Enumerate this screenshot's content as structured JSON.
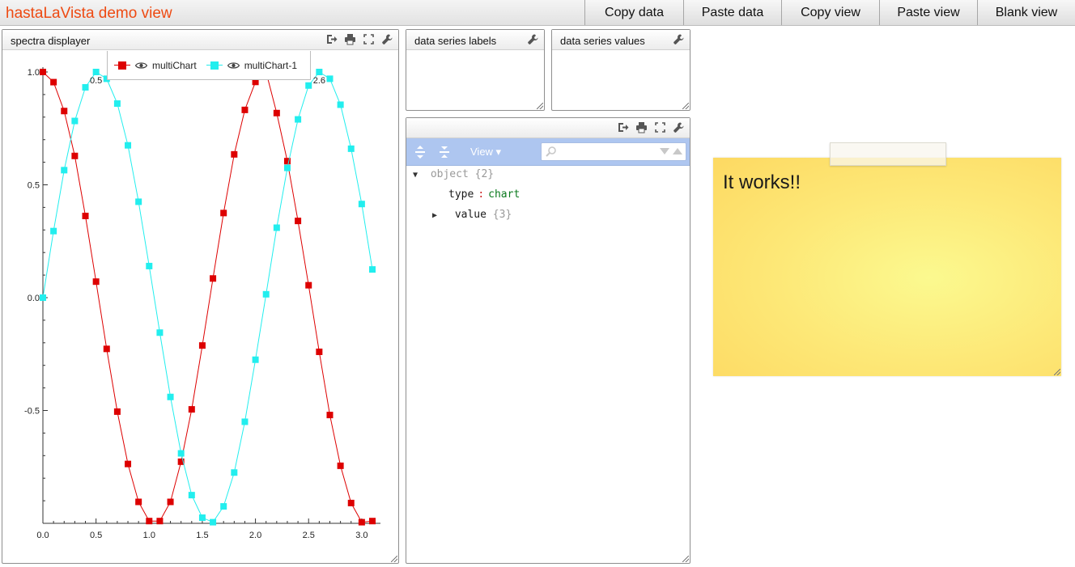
{
  "app": {
    "title": "hastaLaVista demo view"
  },
  "toolbar": {
    "buttons": [
      "Copy data",
      "Paste data",
      "Copy view",
      "Paste view",
      "Blank view"
    ]
  },
  "panels": {
    "spectra": {
      "title": "spectra displayer",
      "icons": [
        "export-icon",
        "print-icon",
        "fullscreen-icon",
        "wrench-icon"
      ]
    },
    "labels": {
      "title": "data series labels",
      "icons": [
        "wrench-icon"
      ]
    },
    "values": {
      "title": "data series values",
      "icons": [
        "wrench-icon"
      ]
    },
    "object": {
      "title": "",
      "icons": [
        "export-icon",
        "print-icon",
        "fullscreen-icon",
        "wrench-icon"
      ]
    }
  },
  "chart_data": {
    "type": "line",
    "title": "",
    "xlabel": "",
    "ylabel": "",
    "xlim": [
      0,
      3.1
    ],
    "ylim": [
      -1,
      1
    ],
    "x_ticks": [
      "0.0",
      "0.5",
      "1.0",
      "1.5",
      "2.0",
      "2.5",
      "3.0"
    ],
    "y_ticks": [
      "1.0",
      "0.5",
      "0.0",
      "-0.5"
    ],
    "legend_position": "top-center",
    "x": [
      0.0,
      0.1,
      0.2,
      0.3,
      0.4,
      0.5,
      0.6,
      0.7,
      0.8,
      0.9,
      1.0,
      1.1,
      1.2,
      1.3,
      1.4,
      1.5,
      1.6,
      1.7,
      1.8,
      1.9,
      2.0,
      2.1,
      2.2,
      2.3,
      2.4,
      2.5,
      2.6,
      2.7,
      2.8,
      2.9,
      3.0,
      3.1
    ],
    "series": [
      {
        "name": "multiChart",
        "color": "#dd0000",
        "values": [
          1.0,
          0.955,
          0.827,
          0.628,
          0.362,
          0.071,
          -0.227,
          -0.505,
          -0.737,
          -0.905,
          -0.99,
          -0.99,
          -0.905,
          -0.727,
          -0.495,
          -0.212,
          0.085,
          0.375,
          0.635,
          0.832,
          0.956,
          1.0,
          0.818,
          0.605,
          0.34,
          0.055,
          -0.24,
          -0.52,
          -0.745,
          -0.91,
          -0.995,
          -0.99
        ]
      },
      {
        "name": "multiChart-1",
        "color": "#22eeee",
        "values": [
          0.0,
          0.295,
          0.565,
          0.783,
          0.932,
          1.0,
          0.97,
          0.86,
          0.675,
          0.425,
          0.14,
          -0.155,
          -0.44,
          -0.69,
          -0.875,
          -0.975,
          -0.995,
          -0.925,
          -0.775,
          -0.55,
          -0.275,
          0.015,
          0.31,
          0.575,
          0.79,
          0.94,
          1.0,
          0.97,
          0.855,
          0.66,
          0.415,
          0.125
        ]
      }
    ],
    "annotations": [
      {
        "text": "0.5",
        "x": 0.5,
        "y": 1.0
      },
      {
        "text": "2.6",
        "x": 2.6,
        "y": 1.0
      }
    ]
  },
  "jsonview": {
    "view_label": "View ▾",
    "root_key": "object",
    "root_count": "{2}",
    "type_key": "type",
    "type_value": "chart",
    "value_key": "value",
    "value_count": "{3}",
    "colon": ":"
  },
  "note": {
    "text": "It works!!"
  }
}
